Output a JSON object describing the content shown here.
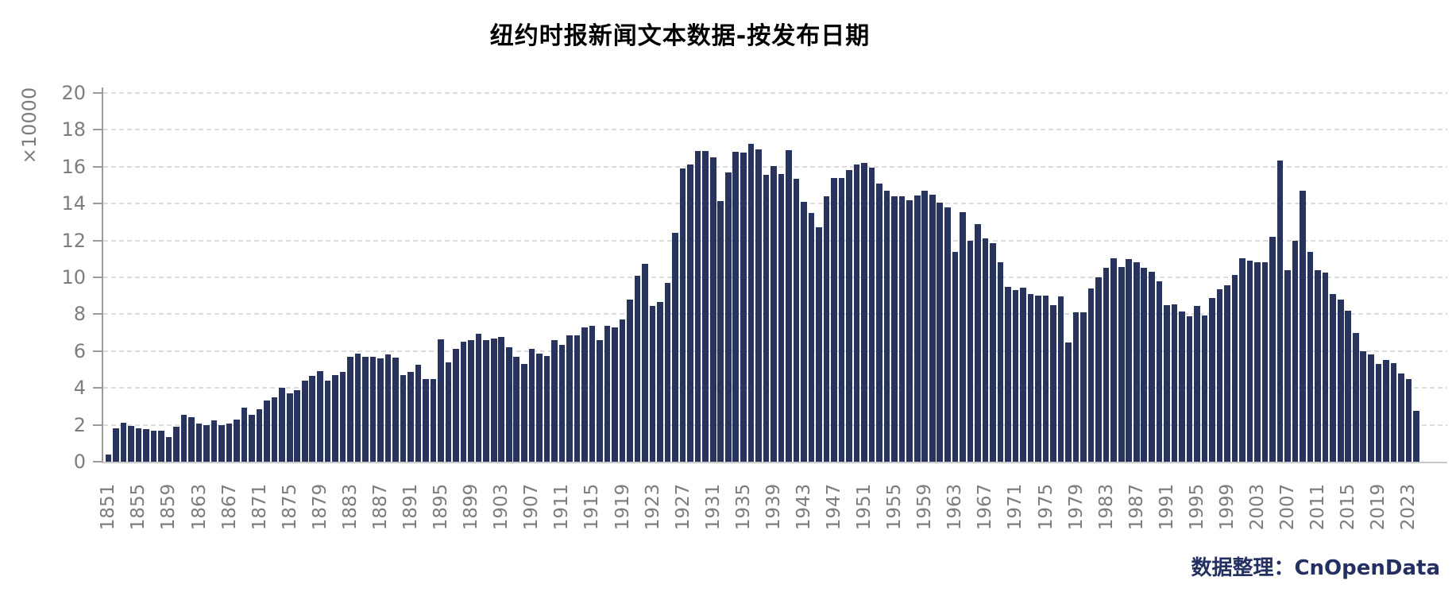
{
  "header": {
    "title": "纽约时报新闻文本数据-按发布日期"
  },
  "footer": {
    "source_label": "数据整理：CnOpenData"
  },
  "chart_data": {
    "type": "bar",
    "title": "纽约时报新闻文本数据-按发布日期",
    "xlabel": "",
    "ylabel": "×10000",
    "ylim": [
      0,
      20
    ],
    "ytick_step": 2,
    "yticks": [
      0,
      2,
      4,
      6,
      8,
      10,
      12,
      14,
      16,
      18,
      20
    ],
    "grid": true,
    "grid_style": "dashed",
    "legend_position": "none",
    "bar_color": "#28345e",
    "grid_color": "#dcdcdc",
    "axis_color": "#9a9a9a",
    "tick_label_color": "#7d7d7d",
    "source_label": "数据整理：CnOpenData",
    "first_year": 1851,
    "last_year": 2024,
    "xtick_labels": [
      "1851",
      "1855",
      "1859",
      "1863",
      "1867",
      "1871",
      "1875",
      "1879",
      "1883",
      "1887",
      "1891",
      "1895",
      "1899",
      "1903",
      "1907",
      "1911",
      "1915",
      "1919",
      "1923",
      "1927",
      "1931",
      "1935",
      "1939",
      "1943",
      "1947",
      "1951",
      "1955",
      "1959",
      "1963",
      "1967",
      "1971",
      "1975",
      "1979",
      "1983",
      "1987",
      "1991",
      "1995",
      "1999",
      "2003",
      "2007",
      "2011",
      "2015",
      "2019",
      "2023"
    ],
    "values": [
      0.4,
      1.8,
      2.1,
      1.95,
      1.8,
      1.75,
      1.7,
      1.7,
      1.35,
      1.9,
      2.55,
      2.4,
      2.05,
      2.0,
      2.25,
      2.0,
      2.05,
      2.3,
      2.95,
      2.55,
      2.85,
      3.3,
      3.5,
      4.0,
      3.7,
      3.9,
      4.4,
      4.65,
      4.9,
      4.4,
      4.7,
      4.85,
      5.7,
      5.85,
      5.7,
      5.7,
      5.6,
      5.8,
      5.65,
      4.7,
      4.85,
      5.25,
      4.5,
      4.5,
      6.65,
      5.4,
      6.1,
      6.5,
      6.6,
      6.95,
      6.6,
      6.7,
      6.75,
      6.2,
      5.7,
      5.3,
      6.1,
      5.85,
      5.75,
      6.6,
      6.35,
      6.85,
      6.85,
      7.3,
      7.35,
      6.6,
      7.35,
      7.3,
      7.7,
      8.8,
      10.1,
      10.75,
      8.45,
      8.65,
      9.7,
      12.4,
      15.9,
      16.1,
      16.85,
      16.85,
      16.5,
      14.15,
      15.7,
      16.8,
      16.75,
      17.25,
      16.95,
      15.55,
      16.05,
      15.6,
      16.9,
      15.35,
      14.1,
      13.5,
      12.7,
      14.4,
      15.4,
      15.4,
      15.8,
      16.1,
      16.2,
      15.95,
      15.1,
      14.7,
      14.4,
      14.4,
      14.2,
      14.45,
      14.7,
      14.5,
      14.05,
      13.8,
      11.4,
      13.55,
      12.0,
      12.9,
      12.1,
      11.85,
      10.8,
      9.5,
      9.3,
      9.45,
      9.1,
      9.0,
      9.0,
      8.5,
      8.95,
      6.45,
      8.1,
      8.1,
      9.4,
      10.0,
      10.5,
      11.05,
      10.55,
      11.0,
      10.8,
      10.5,
      10.3,
      9.8,
      8.5,
      8.55,
      8.15,
      7.9,
      8.45,
      7.95,
      8.9,
      9.35,
      9.55,
      10.15,
      11.05,
      10.9,
      10.8,
      10.8,
      12.2,
      16.35,
      10.4,
      12.0,
      14.7,
      11.4,
      10.4,
      10.25,
      9.1,
      8.8,
      8.2,
      7.0,
      6.0,
      5.8,
      5.3,
      5.5,
      5.35,
      4.8,
      4.5,
      2.75
    ]
  }
}
